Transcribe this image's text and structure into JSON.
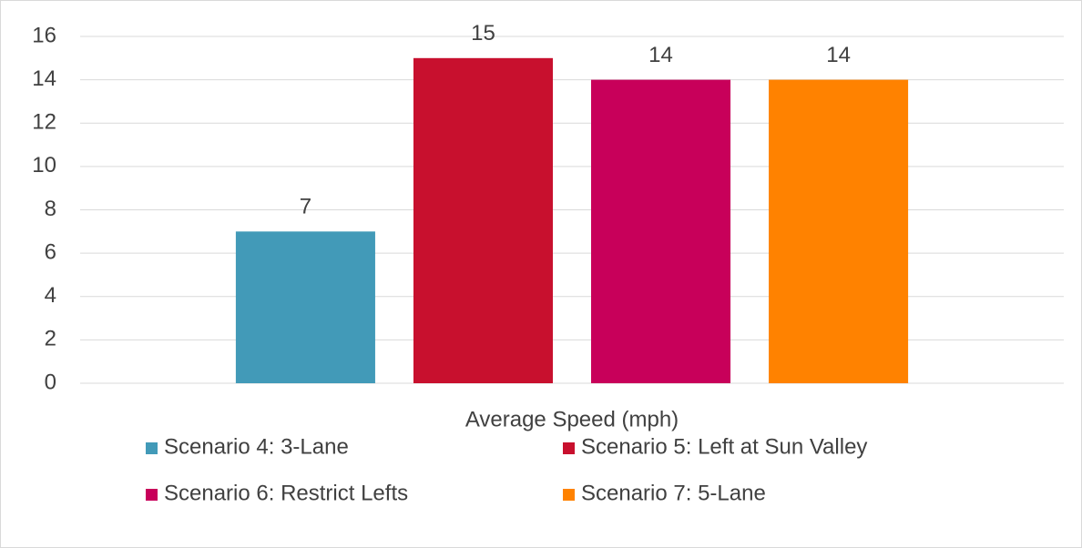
{
  "chart_data": {
    "type": "bar",
    "categories": [
      "Average Speed (mph)"
    ],
    "series": [
      {
        "name": "Scenario 4: 3-Lane",
        "color": "#429ab8",
        "values": [
          7
        ]
      },
      {
        "name": "Scenario 5: Left at Sun Valley",
        "color": "#c8102e",
        "values": [
          15
        ]
      },
      {
        "name": "Scenario 6: Restrict Lefts",
        "color": "#c8005a",
        "values": [
          14
        ]
      },
      {
        "name": "Scenario 7: 5-Lane",
        "color": "#ff8200",
        "values": [
          14
        ]
      }
    ],
    "ylim": [
      0,
      16
    ],
    "yticks": [
      0,
      2,
      4,
      6,
      8,
      10,
      12,
      14,
      16
    ],
    "grid": true,
    "legend": "bottom"
  }
}
